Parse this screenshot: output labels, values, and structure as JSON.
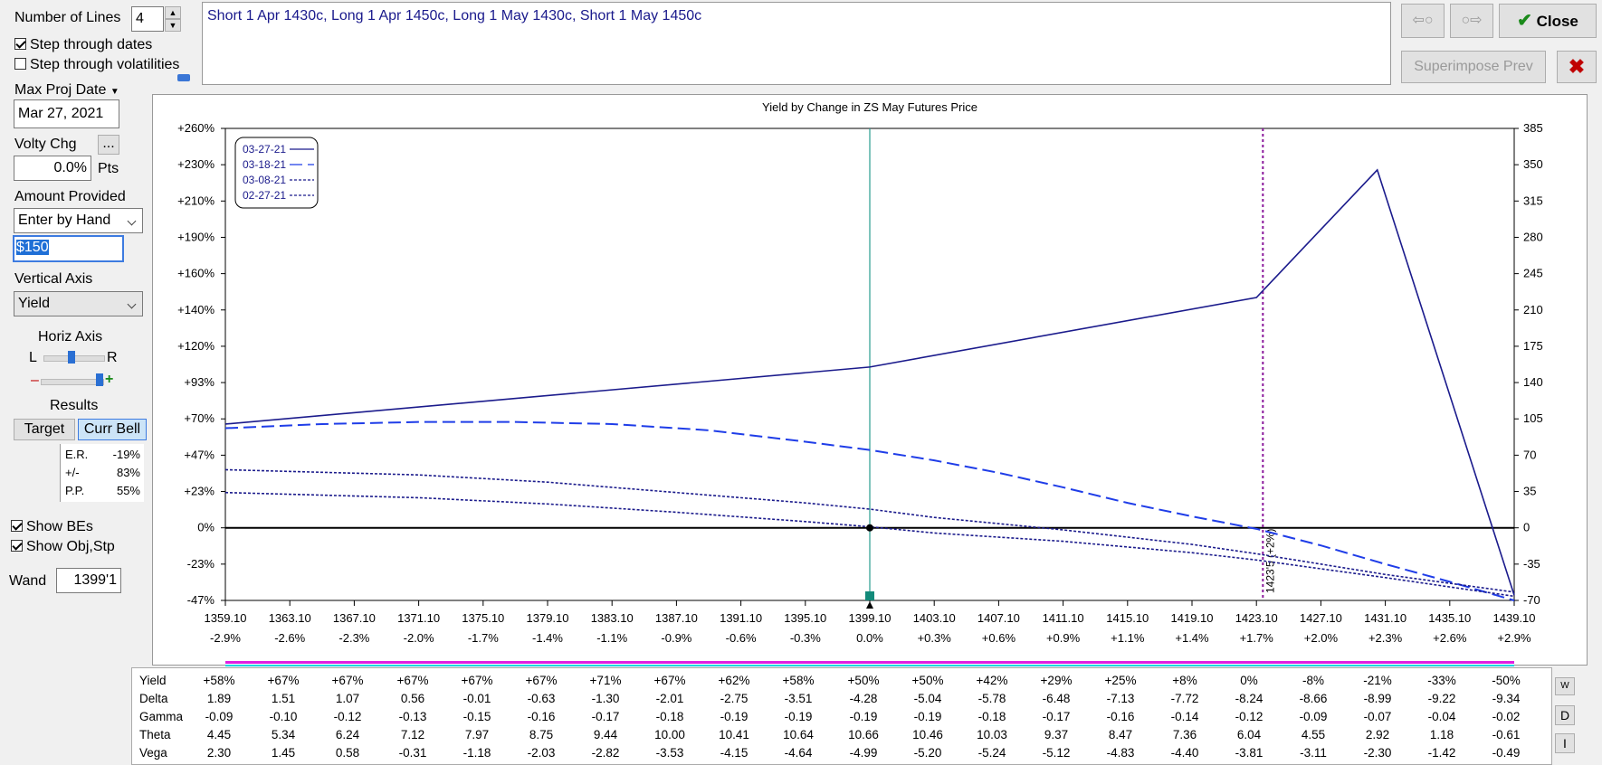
{
  "controls": {
    "number_of_lines_label": "Number of Lines",
    "number_of_lines_value": "4",
    "step_dates_label": "Step through dates",
    "step_dates_checked": true,
    "step_vols_label": "Step through volatilities",
    "step_vols_checked": false,
    "max_proj_date_label": "Max Proj Date",
    "max_proj_date_value": "Mar 27, 2021",
    "volty_chg_label": "Volty Chg",
    "volty_chg_button": "...",
    "volty_chg_value": "0.0%",
    "volty_chg_unit": "Pts",
    "amount_provided_label": "Amount Provided",
    "amount_provided_value": "Enter by Hand",
    "amount_value": "$150",
    "vertical_axis_label": "Vertical Axis",
    "vertical_axis_value": "Yield",
    "horiz_axis_label": "Horiz Axis",
    "horiz_left": "L",
    "horiz_right": "R",
    "minus": "–",
    "plus": "+",
    "results_label": "Results",
    "target_button": "Target",
    "curr_bell_button": "Curr Bell",
    "stats": [
      {
        "label": "E.R.",
        "value": "-19%"
      },
      {
        "label": "+/-",
        "value": "83%"
      },
      {
        "label": "P.P.",
        "value": "55%"
      }
    ],
    "show_bes_label": "Show BEs",
    "show_bes_checked": true,
    "show_obj_label": "Show Obj,Stp",
    "show_obj_checked": true,
    "wand_label": "Wand",
    "wand_value": "1399'1"
  },
  "strategy_text": "Short 1 Apr 1430c, Long 1 Apr 1450c, Long 1 May 1430c, Short 1 May 1450c",
  "toolbar": {
    "close_label": "Close",
    "superimpose_label": "Superimpose Prev"
  },
  "colors": {
    "series": "#1b1b8c",
    "series_dashed": "#1f3de8",
    "vline": "#2a9d8f",
    "be_line": "#8b1a9c",
    "check": "#1a8a1a",
    "x_red": "#c00000"
  },
  "chart_data": {
    "type": "line",
    "title": "Yield by Change in ZS May Futures Price",
    "x_ticks": [
      "1359.10",
      "1363.10",
      "1367.10",
      "1371.10",
      "1375.10",
      "1379.10",
      "1383.10",
      "1387.10",
      "1391.10",
      "1395.10",
      "1399.10",
      "1403.10",
      "1407.10",
      "1411.10",
      "1415.10",
      "1419.10",
      "1423.10",
      "1427.10",
      "1431.10",
      "1435.10",
      "1439.10"
    ],
    "x_pct_ticks": [
      "-2.9%",
      "-2.6%",
      "-2.3%",
      "-2.0%",
      "-1.7%",
      "-1.4%",
      "-1.1%",
      "-0.9%",
      "-0.6%",
      "-0.3%",
      "0.0%",
      "+0.3%",
      "+0.6%",
      "+0.9%",
      "+1.1%",
      "+1.4%",
      "+1.7%",
      "+2.0%",
      "+2.3%",
      "+2.6%",
      "+2.9%"
    ],
    "y_left_ticks": [
      "+260%",
      "+230%",
      "+210%",
      "+190%",
      "+160%",
      "+140%",
      "+120%",
      "+93%",
      "+70%",
      "+47%",
      "+23%",
      "0%",
      "-23%",
      "-47%"
    ],
    "y_right_ticks": [
      "385",
      "350",
      "315",
      "280",
      "245",
      "210",
      "175",
      "140",
      "105",
      "70",
      "35",
      "0",
      "-35",
      "-70"
    ],
    "ylim": [
      -70,
      385
    ],
    "xlim": [
      1359.1,
      1439.1
    ],
    "current_price": 1399.1,
    "breakeven": {
      "x": 1423.5,
      "label": "1423'5 (+2%)"
    },
    "grid": true,
    "legend_position": "top-left",
    "series": [
      {
        "name": "03-27-21",
        "style": "solid",
        "x": [
          1359.1,
          1399.1,
          1423.1,
          1430.6,
          1439.1
        ],
        "y": [
          100,
          155,
          222,
          345,
          -65
        ]
      },
      {
        "name": "03-18-21",
        "style": "dashed",
        "x": [
          1359.1,
          1365.1,
          1371.1,
          1377.1,
          1383.1,
          1389.1,
          1395.1,
          1399.1,
          1403.1,
          1407.1,
          1411.1,
          1415.1,
          1419.1,
          1423.1,
          1427.1,
          1431.1,
          1435.1,
          1439.1
        ],
        "y": [
          96,
          100,
          102,
          102,
          100,
          94,
          83,
          75,
          65,
          53,
          39,
          24,
          11,
          -1,
          -17,
          -35,
          -52,
          -70
        ]
      },
      {
        "name": "03-08-21",
        "style": "dotted",
        "x": [
          1359.1,
          1371.1,
          1379.1,
          1387.1,
          1395.1,
          1399.1,
          1403.1,
          1411.1,
          1419.1,
          1423.1,
          1431.1,
          1439.1
        ],
        "y": [
          56,
          51,
          44,
          34,
          24,
          18,
          10,
          -2,
          -16,
          -25,
          -45,
          -62
        ]
      },
      {
        "name": "02-27-21",
        "style": "dotted",
        "x": [
          1359.1,
          1371.1,
          1379.1,
          1387.1,
          1395.1,
          1399.1,
          1403.1,
          1411.1,
          1419.1,
          1423.1,
          1431.1,
          1439.1
        ],
        "y": [
          34,
          29,
          23,
          15,
          6,
          1,
          -5,
          -13,
          -24,
          -31,
          -48,
          -66
        ]
      }
    ]
  },
  "greeks": {
    "rows": [
      {
        "name": "Yield",
        "values": [
          "+58%",
          "+67%",
          "+67%",
          "+67%",
          "+67%",
          "+67%",
          "+71%",
          "+67%",
          "+62%",
          "+58%",
          "+50%",
          "+50%",
          "+42%",
          "+29%",
          "+25%",
          "+8%",
          "0%",
          "-8%",
          "-21%",
          "-33%",
          "-50%"
        ]
      },
      {
        "name": "Delta",
        "values": [
          "1.89",
          "1.51",
          "1.07",
          "0.56",
          "-0.01",
          "-0.63",
          "-1.30",
          "-2.01",
          "-2.75",
          "-3.51",
          "-4.28",
          "-5.04",
          "-5.78",
          "-6.48",
          "-7.13",
          "-7.72",
          "-8.24",
          "-8.66",
          "-8.99",
          "-9.22",
          "-9.34"
        ]
      },
      {
        "name": "Gamma",
        "values": [
          "-0.09",
          "-0.10",
          "-0.12",
          "-0.13",
          "-0.15",
          "-0.16",
          "-0.17",
          "-0.18",
          "-0.19",
          "-0.19",
          "-0.19",
          "-0.19",
          "-0.18",
          "-0.17",
          "-0.16",
          "-0.14",
          "-0.12",
          "-0.09",
          "-0.07",
          "-0.04",
          "-0.02"
        ]
      },
      {
        "name": "Theta",
        "values": [
          "4.45",
          "5.34",
          "6.24",
          "7.12",
          "7.97",
          "8.75",
          "9.44",
          "10.00",
          "10.41",
          "10.64",
          "10.66",
          "10.46",
          "10.03",
          "9.37",
          "8.47",
          "7.36",
          "6.04",
          "4.55",
          "2.92",
          "1.18",
          "-0.61"
        ]
      },
      {
        "name": "Vega",
        "values": [
          "2.30",
          "1.45",
          "0.58",
          "-0.31",
          "-1.18",
          "-2.03",
          "-2.82",
          "-3.53",
          "-4.15",
          "-4.64",
          "-4.99",
          "-5.20",
          "-5.24",
          "-5.12",
          "-4.83",
          "-4.40",
          "-3.81",
          "-3.11",
          "-2.30",
          "-1.42",
          "-0.49"
        ]
      }
    ],
    "side_buttons": [
      "W",
      "D",
      "I"
    ]
  }
}
